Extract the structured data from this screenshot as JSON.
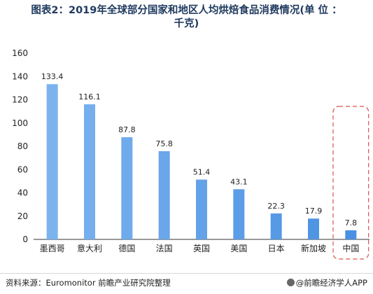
{
  "title": {
    "line1": "图表2：2019年全球部分国家和地区人均烘焙食品消费情况(单 位 ：",
    "line2": "千克)"
  },
  "source": "资料来源：Euromonitor 前瞻产业研究院整理",
  "brand": "@前瞻经济学人APP",
  "colors": {
    "bar_light": "#7bb3ee",
    "bar_dark": "#4a90e2",
    "highlight_border": "#d9534f",
    "axis": "#333333",
    "title": "#1f3a5f"
  },
  "chart_data": {
    "type": "bar",
    "categories": [
      "墨西哥",
      "意大利",
      "德国",
      "法国",
      "英国",
      "美国",
      "日本",
      "新加坡",
      "中国"
    ],
    "values": [
      133.4,
      116.1,
      87.8,
      75.8,
      51.4,
      43.1,
      22.3,
      17.9,
      7.8
    ],
    "data_labels": [
      "133.4",
      "116.1",
      "87.8",
      "75.8",
      "51.4",
      "43.1",
      "22.3",
      "17.9",
      "7.8"
    ],
    "y_ticks": [
      0,
      20,
      40,
      60,
      80,
      100,
      120,
      140,
      160
    ],
    "ylim": [
      0,
      160
    ],
    "grid": false,
    "highlighted_category": "中国",
    "xlabel": "",
    "ylabel": ""
  }
}
